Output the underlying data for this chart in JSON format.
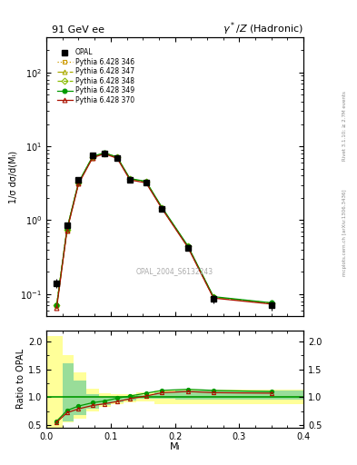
{
  "title_left": "91 GeV ee",
  "title_right": "γ*/Z (Hadronic)",
  "ylabel_main": "1/σ dσ/d(Mₗ)",
  "ylabel_ratio": "Ratio to OPAL",
  "xlabel": "Mₗ",
  "watermark": "OPAL_2004_S6132243",
  "right_label": "mcplots.cern.ch [arXiv:1306.3436]",
  "right_label2": "Rivet 3.1.10; ≥ 2.7M events",
  "opal_x": [
    0.016,
    0.032,
    0.05,
    0.072,
    0.09,
    0.11,
    0.13,
    0.155,
    0.18,
    0.22,
    0.26,
    0.35
  ],
  "opal_y": [
    0.14,
    0.85,
    3.5,
    7.5,
    8.0,
    7.0,
    3.5,
    3.2,
    1.4,
    0.42,
    0.085,
    0.07
  ],
  "opal_yerr": [
    0.02,
    0.05,
    0.2,
    0.3,
    0.3,
    0.3,
    0.2,
    0.2,
    0.1,
    0.03,
    0.01,
    0.01
  ],
  "pythia_x": [
    0.016,
    0.032,
    0.05,
    0.072,
    0.09,
    0.11,
    0.13,
    0.155,
    0.18,
    0.22,
    0.26,
    0.35
  ],
  "p346_y": [
    0.07,
    0.75,
    3.2,
    7.2,
    8.1,
    7.1,
    3.6,
    3.3,
    1.45,
    0.44,
    0.09,
    0.075
  ],
  "p347_y": [
    0.07,
    0.75,
    3.2,
    7.2,
    8.1,
    7.1,
    3.6,
    3.3,
    1.45,
    0.44,
    0.09,
    0.075
  ],
  "p348_y": [
    0.07,
    0.75,
    3.2,
    7.2,
    8.1,
    7.1,
    3.6,
    3.3,
    1.45,
    0.44,
    0.09,
    0.075
  ],
  "p349_y": [
    0.07,
    0.76,
    3.25,
    7.3,
    8.15,
    7.15,
    3.65,
    3.35,
    1.48,
    0.45,
    0.092,
    0.076
  ],
  "p370_y": [
    0.065,
    0.72,
    3.1,
    7.0,
    7.9,
    6.9,
    3.5,
    3.2,
    1.42,
    0.43,
    0.088,
    0.073
  ],
  "ratio_x": [
    0.016,
    0.032,
    0.05,
    0.072,
    0.09,
    0.11,
    0.13,
    0.155,
    0.18,
    0.22,
    0.26,
    0.35
  ],
  "ratio349": [
    0.57,
    0.76,
    0.84,
    0.9,
    0.93,
    0.98,
    1.02,
    1.07,
    1.12,
    1.14,
    1.12,
    1.1
  ],
  "ratio370": [
    0.55,
    0.72,
    0.79,
    0.85,
    0.88,
    0.92,
    0.97,
    1.02,
    1.08,
    1.1,
    1.08,
    1.07
  ],
  "band_yellow_edges": [
    0.0,
    0.025,
    0.042,
    0.062,
    0.082,
    0.1,
    0.12,
    0.14,
    0.168,
    0.2,
    0.24,
    0.28,
    0.36,
    0.4
  ],
  "band_yellow_lo": [
    0.43,
    0.55,
    0.62,
    0.75,
    0.83,
    0.87,
    0.9,
    0.92,
    0.88,
    0.87,
    0.87,
    0.87,
    0.87
  ],
  "band_yellow_hi": [
    2.1,
    1.75,
    1.45,
    1.15,
    1.07,
    1.05,
    1.05,
    1.08,
    1.12,
    1.14,
    1.14,
    1.14,
    1.14
  ],
  "band_green_edges": [
    0.025,
    0.042,
    0.062,
    0.082,
    0.1,
    0.12,
    0.14,
    0.168,
    0.2,
    0.24,
    0.28,
    0.36,
    0.4
  ],
  "band_green_lo": [
    0.57,
    0.68,
    0.8,
    0.86,
    0.9,
    0.94,
    0.97,
    0.97,
    0.96,
    0.96,
    0.96,
    0.96
  ],
  "band_green_hi": [
    1.6,
    1.3,
    1.05,
    1.0,
    1.0,
    1.01,
    1.04,
    1.09,
    1.12,
    1.12,
    1.12,
    1.12
  ],
  "color346": "#cc9900",
  "color347": "#aaaa00",
  "color348": "#88bb00",
  "color349": "#009900",
  "color370": "#aa1100",
  "color_opal": "#000000",
  "ylim_main": [
    0.05,
    300
  ],
  "ylim_ratio": [
    0.45,
    2.2
  ],
  "xlim": [
    0.0,
    0.4
  ]
}
